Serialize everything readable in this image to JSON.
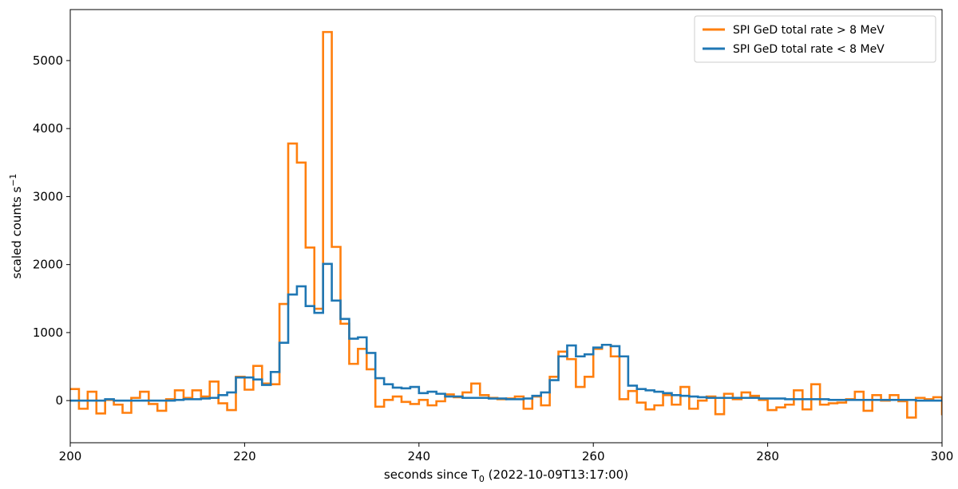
{
  "chart_data": {
    "type": "line",
    "step": "post",
    "xlabel_main": "seconds since T",
    "xlabel_sub": "0",
    "xlabel_rest": " (2022-10-09T13:17:00)",
    "ylabel_main": "scaled counts s",
    "ylabel_sup": "−1",
    "xlim": [
      200,
      300
    ],
    "ylim": [
      -620,
      5750
    ],
    "xticks": [
      200,
      220,
      240,
      260,
      280,
      300
    ],
    "yticks": [
      0,
      1000,
      2000,
      3000,
      4000,
      5000
    ],
    "legend_position": "top-right",
    "grid": false,
    "bin_start": 200,
    "bin_width": 1,
    "series": [
      {
        "name": "SPI GeD total rate > 8 MeV",
        "color": "#ff7f0e",
        "values": [
          170,
          -120,
          130,
          -190,
          10,
          -60,
          -180,
          40,
          130,
          -50,
          -150,
          20,
          150,
          40,
          150,
          60,
          280,
          -40,
          -140,
          350,
          160,
          510,
          250,
          240,
          1420,
          3780,
          3500,
          2250,
          1350,
          5420,
          2260,
          1130,
          540,
          760,
          460,
          -90,
          10,
          60,
          -20,
          -50,
          10,
          -70,
          -10,
          90,
          50,
          120,
          250,
          80,
          40,
          20,
          30,
          60,
          -120,
          60,
          -70,
          350,
          720,
          610,
          200,
          350,
          760,
          820,
          650,
          20,
          140,
          -30,
          -130,
          -70,
          80,
          -60,
          200,
          -120,
          0,
          60,
          -200,
          100,
          20,
          120,
          70,
          10,
          -140,
          -100,
          -60,
          150,
          -130,
          240,
          -60,
          -40,
          -30,
          20,
          130,
          -150,
          80,
          0,
          80,
          -10,
          -250,
          40,
          20,
          50,
          -200
        ]
      },
      {
        "name": "SPI GeD total rate < 8 MeV",
        "color": "#1f77b4",
        "values": [
          0,
          0,
          0,
          0,
          20,
          0,
          0,
          0,
          0,
          0,
          0,
          0,
          10,
          20,
          20,
          30,
          40,
          80,
          120,
          340,
          340,
          310,
          230,
          420,
          850,
          1560,
          1680,
          1390,
          1290,
          2010,
          1470,
          1200,
          910,
          930,
          700,
          330,
          240,
          190,
          180,
          200,
          110,
          130,
          100,
          60,
          60,
          40,
          40,
          40,
          30,
          30,
          20,
          20,
          30,
          70,
          120,
          300,
          650,
          810,
          650,
          680,
          780,
          820,
          800,
          650,
          220,
          170,
          150,
          130,
          110,
          80,
          70,
          60,
          50,
          40,
          40,
          40,
          40,
          40,
          40,
          30,
          30,
          30,
          20,
          20,
          20,
          20,
          20,
          10,
          10,
          10,
          10,
          10,
          10,
          10,
          10,
          10,
          10,
          0,
          0,
          0,
          0
        ]
      }
    ]
  }
}
